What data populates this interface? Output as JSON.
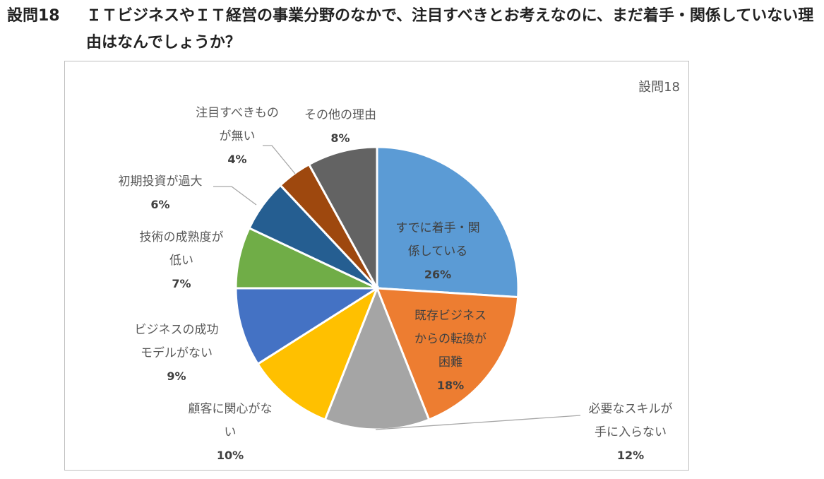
{
  "question": {
    "number": "設問18",
    "text": "ＩＴビジネスやＩＴ経営の事業分野のなかで、注目すべきとお考えなのに、まだ着手・関係していない理由はなんでしょうか？"
  },
  "chart_data": {
    "type": "pie",
    "title": "設問18",
    "slices": [
      {
        "label": "すでに着手・関係している",
        "value": 26,
        "display": "26%",
        "color": "#5B9BD5"
      },
      {
        "label": "既存ビジネスからの転換が困難",
        "value": 18,
        "display": "18%",
        "color": "#ED7D31"
      },
      {
        "label": "必要なスキルが手に入らない",
        "value": 12,
        "display": "12%",
        "color": "#A5A5A5"
      },
      {
        "label": "顧客に関心がない",
        "value": 10,
        "display": "10%",
        "color": "#FFC000"
      },
      {
        "label": "ビジネスの成功モデルがない",
        "value": 9,
        "display": "9%",
        "color": "#4472C4"
      },
      {
        "label": "技術の成熟度が低い",
        "value": 7,
        "display": "7%",
        "color": "#70AD47"
      },
      {
        "label": "初期投資が過大",
        "value": 6,
        "display": "6%",
        "color": "#255E91"
      },
      {
        "label": "注目すべきものが無い",
        "value": 4,
        "display": "4%",
        "color": "#9E480E"
      },
      {
        "label": "その他の理由",
        "value": 8,
        "display": "8%",
        "color": "#636363"
      }
    ]
  }
}
